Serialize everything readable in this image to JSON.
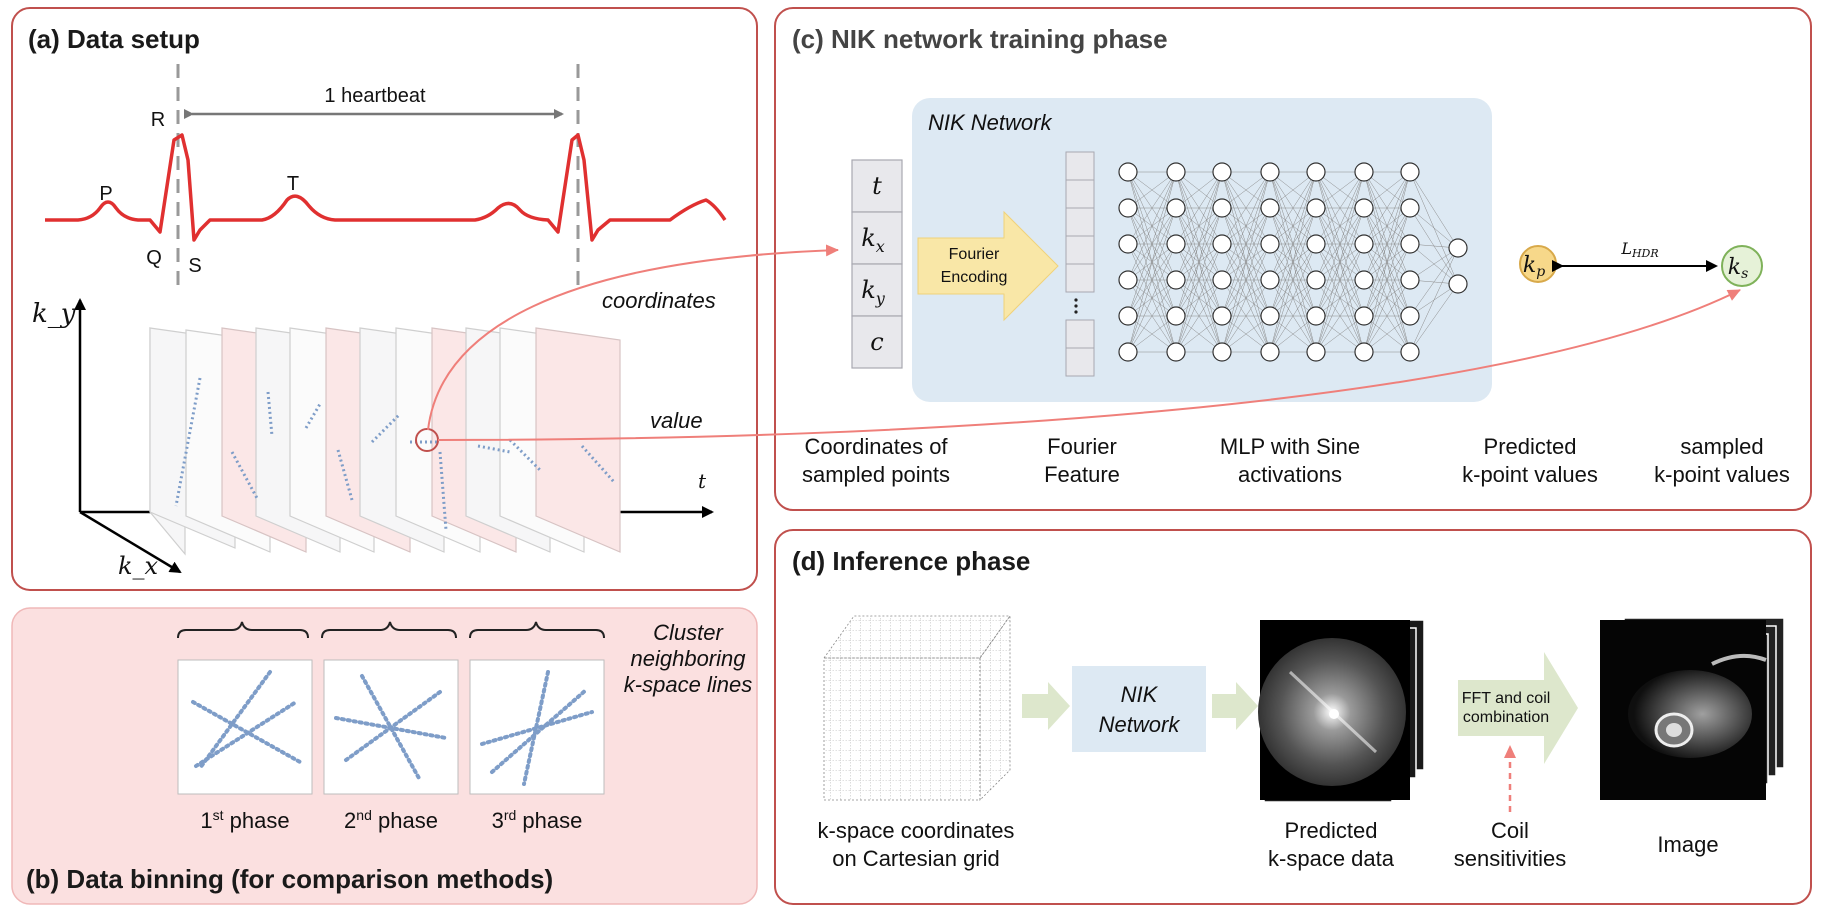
{
  "panels": {
    "a": {
      "title": "(a) Data setup",
      "heartbeat_label": "1 heartbeat",
      "ecg_labels": {
        "p": "P",
        "q": "Q",
        "r": "R",
        "s": "S",
        "t": "T"
      },
      "axis_ky": "k_y",
      "axis_kx": "k_x",
      "axis_t": "t",
      "coordinates_label": "coordinates",
      "value_label": "value"
    },
    "b": {
      "title": "(b) Data binning (for comparison methods)",
      "cluster_note": [
        "Cluster",
        "neighboring",
        "k-space lines"
      ],
      "phases": [
        {
          "num": "1",
          "sup": "st",
          "word": " phase"
        },
        {
          "num": "2",
          "sup": "nd",
          "word": " phase"
        },
        {
          "num": "3",
          "sup": "rd",
          "word": " phase"
        }
      ]
    },
    "c": {
      "title": "(c) NIK network training phase",
      "network_label": "NIK Network",
      "input_cells": [
        "t",
        "k",
        "k",
        "c"
      ],
      "input_subs": [
        "",
        "x",
        "y",
        ""
      ],
      "fourier_block": [
        "Fourier",
        "Encoding"
      ],
      "kp_label": "k",
      "kp_sub": "p",
      "ks_label": "k",
      "ks_sub": "s",
      "loss_label": "L",
      "loss_sub": "HDR",
      "captions": [
        [
          "Coordinates of",
          "sampled points"
        ],
        [
          "Fourier",
          "Feature"
        ],
        [
          "MLP with Sine",
          "activations"
        ],
        [
          "Predicted",
          "k-point values"
        ],
        [
          "sampled",
          "k-point values"
        ]
      ],
      "colors": {
        "pred_fill": "#f7d88a",
        "pred_stroke": "#d8a94a",
        "pred_text": "#d63030",
        "samp_fill": "#e6f2d8",
        "samp_stroke": "#7fb25a",
        "samp_text": "#8fb56a"
      }
    },
    "d": {
      "title": "(d) Inference phase",
      "nik_box": [
        "NIK",
        "Network"
      ],
      "fft_box": [
        "FFT and coil",
        "combination"
      ],
      "captions": {
        "kspace": [
          "k-space coordinates",
          "on Cartesian grid"
        ],
        "predicted": [
          "Predicted",
          "k-space data"
        ],
        "coil": [
          "Coil",
          "sensitivities"
        ],
        "image": [
          "Image"
        ]
      }
    }
  },
  "colors": {
    "panel_border": "#c0504d",
    "ecg_line": "#e03030",
    "binning_bg": "#fbe0e0",
    "network_bg": "#dde9f3",
    "arrow_red": "#ef7f7a",
    "flow_green": "#dde7cc",
    "dots_blue": "#7e9dc8"
  }
}
